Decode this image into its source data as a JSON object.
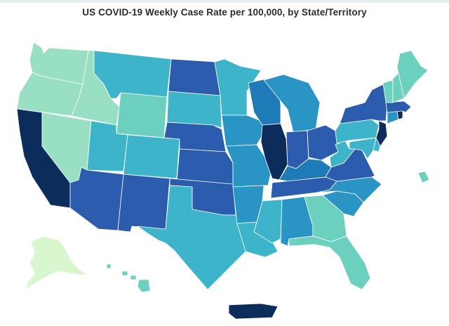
{
  "title": "US COVID-19 Weekly Case Rate per 100,000, by State/Territory",
  "colors": {
    "c1": "#d9f7cf",
    "c2": "#99dfc4",
    "c3": "#6cd0bf",
    "c4": "#3db4c9",
    "c5": "#2a95c5",
    "c6": "#1f7ab8",
    "c7": "#2b5cad",
    "c8": "#0c2d5c"
  },
  "map_data": {
    "type": "choropleth",
    "regions": [
      {
        "id": "WA",
        "bin": "c2"
      },
      {
        "id": "OR",
        "bin": "c2"
      },
      {
        "id": "CA",
        "bin": "c8"
      },
      {
        "id": "NV",
        "bin": "c2"
      },
      {
        "id": "ID",
        "bin": "c2"
      },
      {
        "id": "MT",
        "bin": "c4"
      },
      {
        "id": "WY",
        "bin": "c3"
      },
      {
        "id": "UT",
        "bin": "c4"
      },
      {
        "id": "CO",
        "bin": "c4"
      },
      {
        "id": "AZ",
        "bin": "c7"
      },
      {
        "id": "NM",
        "bin": "c7"
      },
      {
        "id": "ND",
        "bin": "c7"
      },
      {
        "id": "SD",
        "bin": "c4"
      },
      {
        "id": "NE",
        "bin": "c7"
      },
      {
        "id": "KS",
        "bin": "c7"
      },
      {
        "id": "OK",
        "bin": "c7"
      },
      {
        "id": "TX",
        "bin": "c4"
      },
      {
        "id": "MN",
        "bin": "c4"
      },
      {
        "id": "IA",
        "bin": "c5"
      },
      {
        "id": "MO",
        "bin": "c5"
      },
      {
        "id": "AR",
        "bin": "c5"
      },
      {
        "id": "LA",
        "bin": "c4"
      },
      {
        "id": "WI",
        "bin": "c6"
      },
      {
        "id": "IL",
        "bin": "c8"
      },
      {
        "id": "MI",
        "bin": "c5"
      },
      {
        "id": "IN",
        "bin": "c7"
      },
      {
        "id": "OH",
        "bin": "c7"
      },
      {
        "id": "KY",
        "bin": "c6"
      },
      {
        "id": "TN",
        "bin": "c7"
      },
      {
        "id": "MS",
        "bin": "c4"
      },
      {
        "id": "AL",
        "bin": "c5"
      },
      {
        "id": "GA",
        "bin": "c3"
      },
      {
        "id": "FL",
        "bin": "c3"
      },
      {
        "id": "SC",
        "bin": "c5"
      },
      {
        "id": "NC",
        "bin": "c5"
      },
      {
        "id": "VA",
        "bin": "c7"
      },
      {
        "id": "WV",
        "bin": "c4"
      },
      {
        "id": "PA",
        "bin": "c4"
      },
      {
        "id": "NY",
        "bin": "c7"
      },
      {
        "id": "NJ",
        "bin": "c8"
      },
      {
        "id": "MD",
        "bin": "c4"
      },
      {
        "id": "DE",
        "bin": "c4"
      },
      {
        "id": "CT",
        "bin": "c5"
      },
      {
        "id": "RI",
        "bin": "c8"
      },
      {
        "id": "MA",
        "bin": "c7"
      },
      {
        "id": "VT",
        "bin": "c3"
      },
      {
        "id": "NH",
        "bin": "c3"
      },
      {
        "id": "ME",
        "bin": "c3"
      },
      {
        "id": "AK",
        "bin": "c1"
      },
      {
        "id": "HI",
        "bin": "c3"
      },
      {
        "id": "PR",
        "bin": "c8"
      },
      {
        "id": "VI",
        "bin": "c3"
      }
    ]
  }
}
